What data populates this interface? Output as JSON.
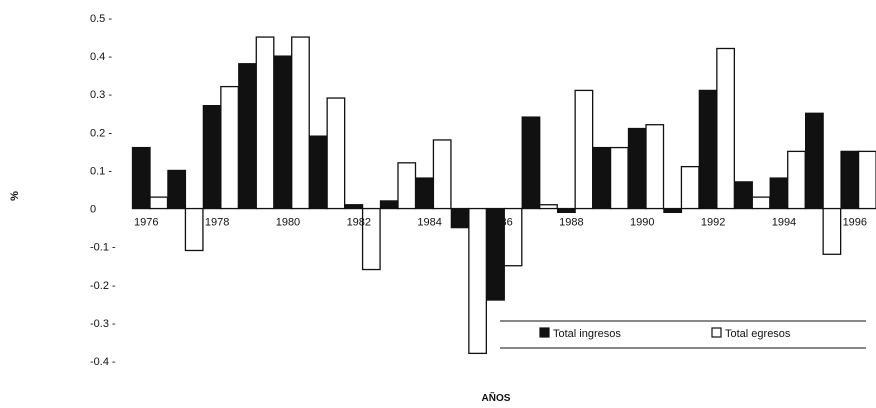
{
  "chart_data": {
    "type": "bar",
    "xlabel": "AÑOS",
    "ylabel": "%",
    "ylim": [
      -0.4,
      0.5
    ],
    "yticks": [
      {
        "value": 0.5,
        "label": "0.5 -"
      },
      {
        "value": 0.4,
        "label": "0.4 -"
      },
      {
        "value": 0.3,
        "label": "0.3 -"
      },
      {
        "value": 0.2,
        "label": "0.2 -"
      },
      {
        "value": 0.1,
        "label": "0.1 -"
      },
      {
        "value": 0,
        "label": "0"
      },
      {
        "value": -0.1,
        "label": "-0.1 -"
      },
      {
        "value": -0.2,
        "label": "-0.2 -"
      },
      {
        "value": -0.3,
        "label": "-0.3 -"
      },
      {
        "value": -0.4,
        "label": "-0.4 -"
      }
    ],
    "categories": [
      "1976",
      "1977",
      "1978",
      "1979",
      "1980",
      "1981",
      "1982",
      "1983",
      "1984",
      "1985",
      "1986",
      "1987",
      "1988",
      "1989",
      "1990",
      "1991",
      "1992",
      "1993",
      "1994",
      "1995",
      "1996"
    ],
    "xtick_labels": [
      "1976",
      "1978",
      "1980",
      "1982",
      "1984",
      "1986",
      "1988",
      "1990",
      "1992",
      "1994",
      "1996"
    ],
    "series": [
      {
        "name": "Total ingresos",
        "color": "#111111",
        "values": [
          0.16,
          0.1,
          0.27,
          0.38,
          0.4,
          0.19,
          0.01,
          0.02,
          0.08,
          -0.05,
          -0.24,
          0.24,
          -0.01,
          0.16,
          0.21,
          -0.01,
          0.31,
          0.07,
          0.08,
          0.25,
          0.15
        ]
      },
      {
        "name": "Total egresos",
        "color": "#ffffff",
        "values": [
          0.03,
          -0.11,
          0.32,
          0.45,
          0.45,
          0.29,
          -0.16,
          0.12,
          0.18,
          -0.38,
          -0.15,
          0.01,
          0.31,
          0.16,
          0.22,
          0.11,
          0.42,
          0.03,
          0.15,
          -0.12,
          0.15
        ]
      }
    ],
    "legend": {
      "position": "bottom-right"
    },
    "grid": false
  }
}
